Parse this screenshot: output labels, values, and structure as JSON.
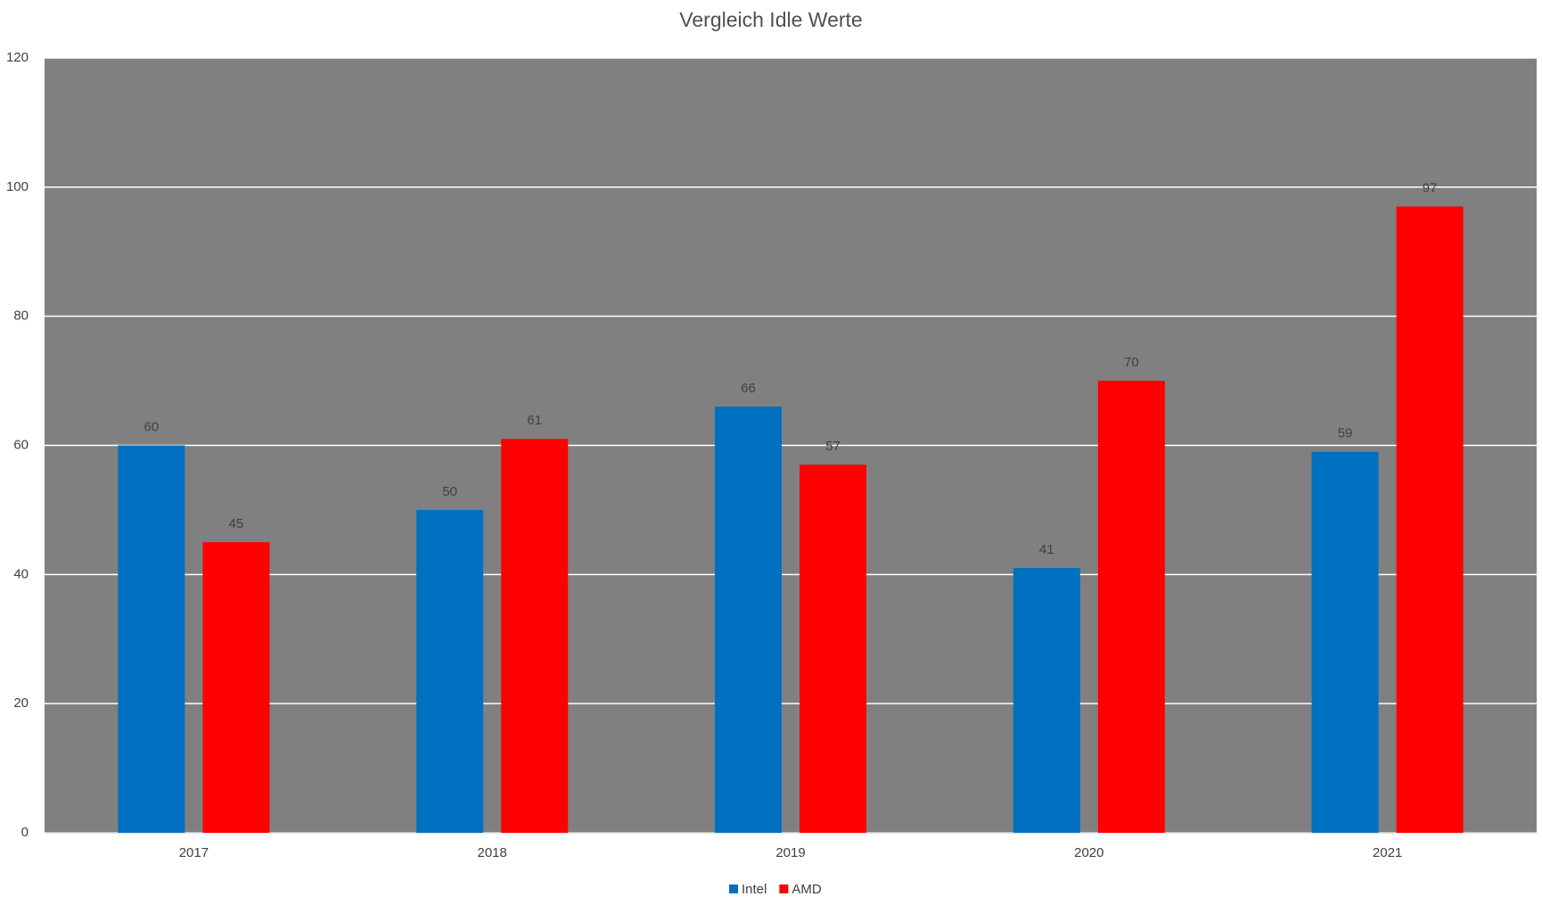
{
  "chart_data": {
    "type": "bar",
    "title": "Vergleich Idle Werte",
    "categories": [
      "2017",
      "2018",
      "2019",
      "2020",
      "2021"
    ],
    "series": [
      {
        "name": "Intel",
        "color": "#0070c0",
        "values": [
          60,
          50,
          66,
          41,
          59
        ]
      },
      {
        "name": "AMD",
        "color": "#ff0000",
        "values": [
          45,
          61,
          57,
          70,
          97
        ]
      }
    ],
    "ylim": [
      0,
      120
    ],
    "yticks": [
      0,
      20,
      40,
      60,
      80,
      100,
      120
    ],
    "grid": true,
    "legend": "bottom"
  }
}
